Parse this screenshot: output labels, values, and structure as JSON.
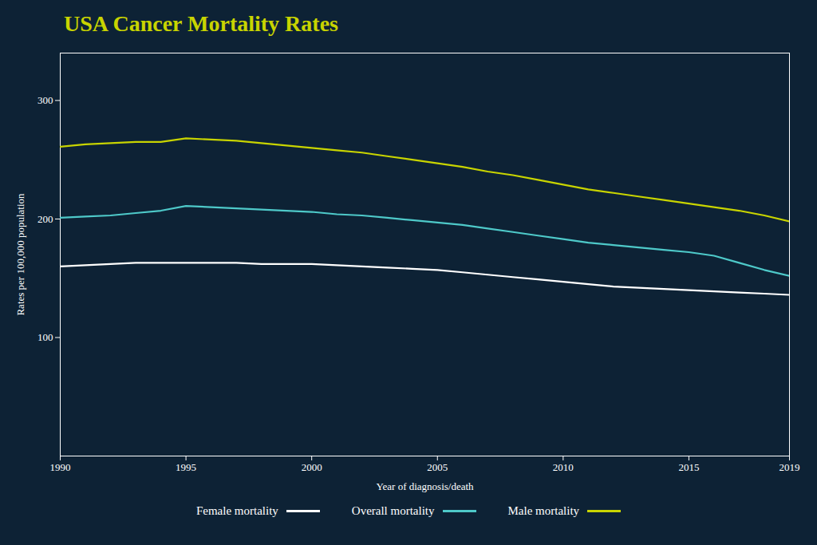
{
  "chart_data": {
    "type": "line",
    "title": "USA Cancer Mortality Rates",
    "xlabel": "Year of diagnosis/death",
    "ylabel": "Rates per 100,000 population",
    "x": [
      1990,
      1991,
      1992,
      1993,
      1994,
      1995,
      1996,
      1997,
      1998,
      1999,
      2000,
      2001,
      2002,
      2003,
      2004,
      2005,
      2006,
      2007,
      2008,
      2009,
      2010,
      2011,
      2012,
      2013,
      2014,
      2015,
      2016,
      2017,
      2018,
      2019
    ],
    "series": [
      {
        "name": "Female mortality",
        "color": "#ffffff",
        "values": [
          160,
          161,
          162,
          163,
          163,
          163,
          163,
          163,
          162,
          162,
          162,
          161,
          160,
          159,
          158,
          157,
          155,
          153,
          151,
          149,
          147,
          145,
          143,
          142,
          141,
          140,
          139,
          138,
          137,
          136
        ]
      },
      {
        "name": "Overall mortality",
        "color": "#4ec9c9",
        "values": [
          201,
          202,
          203,
          205,
          207,
          211,
          210,
          209,
          208,
          207,
          206,
          204,
          203,
          201,
          199,
          197,
          195,
          192,
          189,
          186,
          183,
          180,
          178,
          176,
          174,
          172,
          169,
          163,
          157,
          152
        ]
      },
      {
        "name": "Male mortality",
        "color": "#c8d400",
        "values": [
          261,
          263,
          264,
          265,
          265,
          268,
          267,
          266,
          264,
          262,
          260,
          258,
          256,
          253,
          250,
          247,
          244,
          240,
          237,
          233,
          229,
          225,
          222,
          219,
          216,
          213,
          210,
          207,
          203,
          198
        ]
      }
    ],
    "xlim": [
      1990,
      2019
    ],
    "xticks": [
      1990,
      1995,
      2000,
      2005,
      2010,
      2015,
      2019
    ],
    "ylim": [
      0,
      340
    ],
    "yticks": [
      100,
      200,
      300
    ],
    "grid": false,
    "legend": "bottom"
  }
}
